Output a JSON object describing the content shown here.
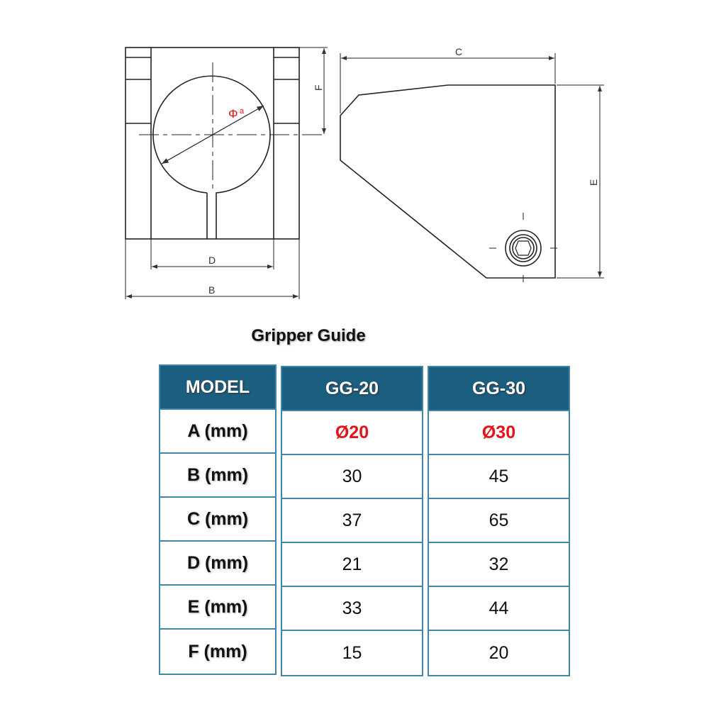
{
  "drawing": {
    "front_labels": {
      "dia": "Φ",
      "dia_sub": "a",
      "d": "D",
      "b": "B",
      "f": "F"
    },
    "side_labels": {
      "c": "C",
      "e": "E"
    },
    "dimension_color": "#e3121b"
  },
  "table": {
    "title": "Gripper Guide",
    "header_color": "#1b5e7f",
    "highlight_color": "#e3121b",
    "columns": [
      {
        "header": "MODEL",
        "cells": [
          "A (mm)",
          "B (mm)",
          "C (mm)",
          "D (mm)",
          "E (mm)",
          "F (mm)"
        ]
      },
      {
        "header": "GG-20",
        "cells": [
          "Ø20",
          "30",
          "37",
          "21",
          "33",
          "15"
        ]
      },
      {
        "header": "GG-30",
        "cells": [
          "Ø30",
          "45",
          "65",
          "32",
          "44",
          "20"
        ]
      }
    ]
  }
}
